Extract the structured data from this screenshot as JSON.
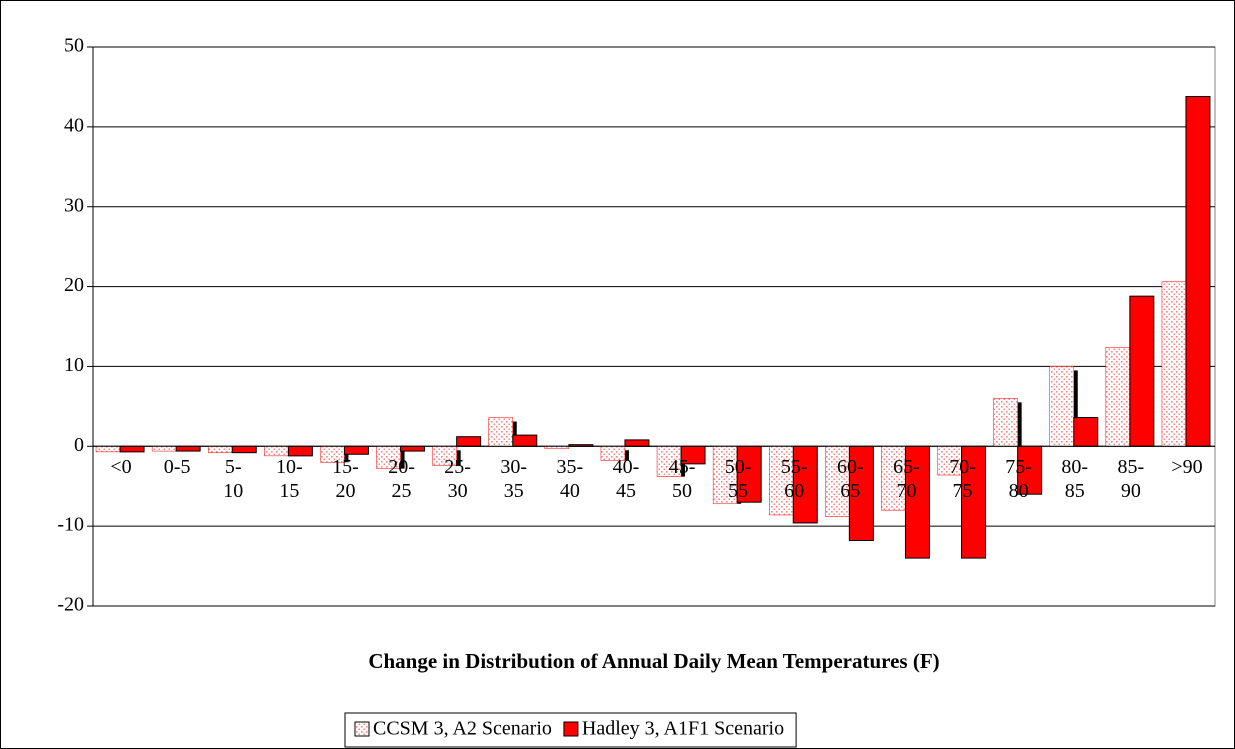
{
  "chart_data": {
    "type": "bar",
    "title": "Change in Distribution of Annual Daily Mean Temperatures (F)",
    "categories": [
      "<0",
      "0-5",
      "5-10",
      "10-15",
      "15-20",
      "20-25",
      "25-30",
      "30-35",
      "35-40",
      "40-45",
      "45-50",
      "50-55",
      "55-60",
      "60-65",
      "65-70",
      "70-75",
      "75-80",
      "80-85",
      "85-90",
      ">90"
    ],
    "series": [
      {
        "name": "CCSM 3, A2 Scenario",
        "color": "#ff0000",
        "pattern": "dotted",
        "values": [
          -0.7,
          -0.6,
          -0.8,
          -1.2,
          -2.0,
          -2.8,
          -2.4,
          3.6,
          -0.3,
          -1.8,
          -3.8,
          -7.2,
          -8.6,
          -8.8,
          -8.0,
          -3.6,
          6.0,
          10.0,
          12.4,
          20.6
        ]
      },
      {
        "name": "Hadley 3, A1F1 Scenario",
        "color": "#ff0000",
        "pattern": "solid",
        "values": [
          -0.7,
          -0.6,
          -0.8,
          -1.2,
          -1.0,
          -0.6,
          1.2,
          1.4,
          0.2,
          0.8,
          -2.2,
          -7.0,
          -9.6,
          -11.8,
          -14.0,
          -14.0,
          -6.0,
          3.6,
          18.8,
          43.8
        ]
      }
    ],
    "ylim": [
      -20,
      50
    ],
    "yticks": [
      -20,
      -10,
      0,
      10,
      20,
      30,
      40,
      50
    ],
    "grid": true,
    "legend": "bottom"
  }
}
